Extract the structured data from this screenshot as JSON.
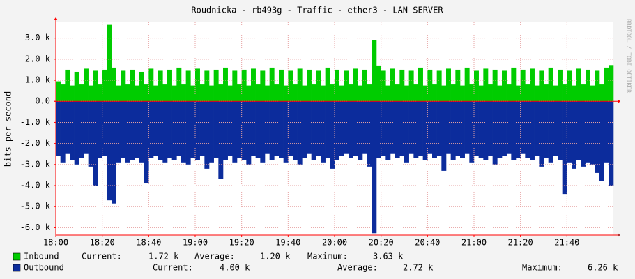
{
  "chart_data": {
    "type": "area",
    "title": "Roudnicka - rb493g - Traffic - ether3 - LAN_SERVER",
    "y_label": "bits per second",
    "side_label": "RRDTOOL / TOBI OETIKER",
    "categories": [
      "18:00",
      null,
      null,
      null,
      null,
      null,
      null,
      null,
      null,
      null,
      "18:20",
      null,
      null,
      null,
      null,
      null,
      null,
      null,
      null,
      null,
      "18:40",
      null,
      null,
      null,
      null,
      null,
      null,
      null,
      null,
      null,
      "19:00",
      null,
      null,
      null,
      null,
      null,
      null,
      null,
      null,
      null,
      "19:20",
      null,
      null,
      null,
      null,
      null,
      null,
      null,
      null,
      null,
      "19:40",
      null,
      null,
      null,
      null,
      null,
      null,
      null,
      null,
      null,
      "20:00",
      null,
      null,
      null,
      null,
      null,
      null,
      null,
      null,
      null,
      "20:20",
      null,
      null,
      null,
      null,
      null,
      null,
      null,
      null,
      null,
      "20:40",
      null,
      null,
      null,
      null,
      null,
      null,
      null,
      null,
      null,
      "21:00",
      null,
      null,
      null,
      null,
      null,
      null,
      null,
      null,
      null,
      "21:20",
      null,
      null,
      null,
      null,
      null,
      null,
      null,
      null,
      null,
      "21:40",
      null,
      null,
      null,
      null,
      null,
      null,
      null,
      null,
      null
    ],
    "ylim": [
      -6350,
      3750
    ],
    "yticks": [
      {
        "value": 3000,
        "label": "3.0 k"
      },
      {
        "value": 2000,
        "label": "2.0 k"
      },
      {
        "value": 1000,
        "label": "1.0 k"
      },
      {
        "value": 0,
        "label": "0.0"
      },
      {
        "value": -1000,
        "label": "-1.0 k"
      },
      {
        "value": -2000,
        "label": "-2.0 k"
      },
      {
        "value": -3000,
        "label": "-3.0 k"
      },
      {
        "value": -4000,
        "label": "-4.0 k"
      },
      {
        "value": -5000,
        "label": "-5.0 k"
      },
      {
        "value": -6000,
        "label": "-6.0 k"
      }
    ],
    "grid": true,
    "series": [
      {
        "name": "Inbound",
        "color": "#00cc00",
        "legend": [
          {
            "label": "Current:",
            "value": "1.72 k"
          },
          {
            "label": "Average:",
            "value": "1.20 k"
          },
          {
            "label": "Maximum:",
            "value": "3.63 k"
          }
        ],
        "values": [
          950,
          800,
          1500,
          750,
          1400,
          800,
          1550,
          750,
          1450,
          800,
          1500,
          3630,
          1600,
          750,
          1450,
          800,
          1500,
          750,
          1400,
          800,
          1550,
          750,
          1450,
          800,
          1500,
          750,
          1600,
          800,
          1450,
          750,
          1550,
          800,
          1450,
          750,
          1500,
          800,
          1600,
          750,
          1450,
          800,
          1500,
          750,
          1550,
          800,
          1450,
          750,
          1600,
          800,
          1500,
          750,
          1450,
          800,
          1550,
          750,
          1500,
          800,
          1450,
          750,
          1600,
          800,
          1500,
          750,
          1450,
          800,
          1550,
          750,
          1500,
          800,
          2900,
          1700,
          1450,
          750,
          1550,
          800,
          1500,
          750,
          1450,
          800,
          1600,
          750,
          1500,
          800,
          1450,
          750,
          1550,
          800,
          1500,
          750,
          1600,
          800,
          1450,
          750,
          1550,
          800,
          1500,
          750,
          1450,
          800,
          1600,
          750,
          1500,
          800,
          1550,
          750,
          1450,
          800,
          1600,
          750,
          1500,
          800,
          1450,
          750,
          1550,
          800,
          1500,
          750,
          1450,
          800,
          1600,
          1720
        ]
      },
      {
        "name": "Outbound",
        "color": "#0c2c9c",
        "legend": [
          {
            "label": "Current:",
            "value": "4.00 k"
          },
          {
            "label": "Average:",
            "value": "2.72 k"
          },
          {
            "label": "Maximum:",
            "value": "6.26 k"
          }
        ],
        "values": [
          -2600,
          -2900,
          -2500,
          -2800,
          -3000,
          -2700,
          -2500,
          -3100,
          -4000,
          -2700,
          -2600,
          -4700,
          -4850,
          -2900,
          -2700,
          -2900,
          -2800,
          -2700,
          -2900,
          -3900,
          -2700,
          -2600,
          -2800,
          -2900,
          -2700,
          -2800,
          -2600,
          -2900,
          -3000,
          -2700,
          -2800,
          -2600,
          -3200,
          -2900,
          -2700,
          -3700,
          -2800,
          -2600,
          -2900,
          -2700,
          -2800,
          -3000,
          -2600,
          -2700,
          -2900,
          -2500,
          -2800,
          -2600,
          -2700,
          -2900,
          -2600,
          -2800,
          -3000,
          -2700,
          -2500,
          -2800,
          -2600,
          -2900,
          -2700,
          -3200,
          -2800,
          -2600,
          -2500,
          -2700,
          -2600,
          -2800,
          -2500,
          -3100,
          -6260,
          -2700,
          -2600,
          -2800,
          -2500,
          -2700,
          -2600,
          -2900,
          -2500,
          -2700,
          -2600,
          -2800,
          -2500,
          -2700,
          -2600,
          -3300,
          -2500,
          -2800,
          -2600,
          -2700,
          -2500,
          -2900,
          -2600,
          -2700,
          -2800,
          -2600,
          -3000,
          -2700,
          -2600,
          -2500,
          -2800,
          -2700,
          -2500,
          -2700,
          -2800,
          -2600,
          -3100,
          -2700,
          -2900,
          -2600,
          -2800,
          -4400,
          -2900,
          -3200,
          -2800,
          -3100,
          -2900,
          -3000,
          -3400,
          -3800,
          -2900,
          -4000
        ]
      }
    ]
  }
}
